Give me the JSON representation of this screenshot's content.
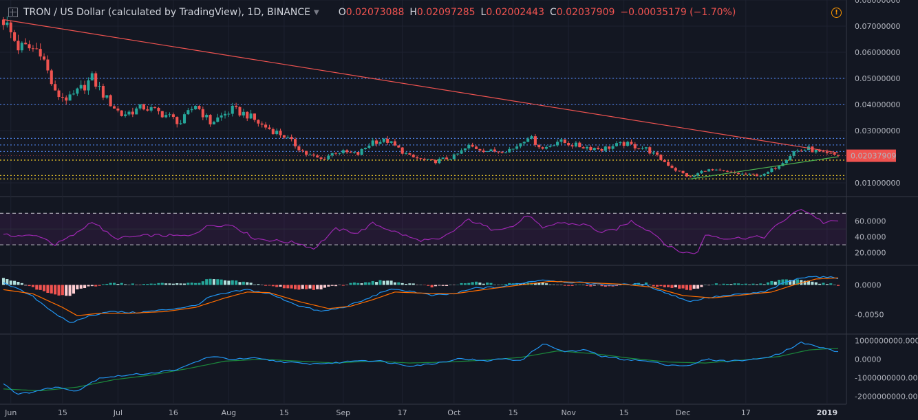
{
  "header": {
    "symbol": "TRON / US Dollar (calculated by TradingView), 1D, BINANCE",
    "open_label": "O",
    "open": "0.02073088",
    "high_label": "H",
    "high": "0.02097285",
    "low_label": "L",
    "low": "0.02002443",
    "close_label": "C",
    "close": "0.02037909",
    "change": "−0.00035179 (−1.70%)"
  },
  "colors": {
    "up": "#26a69a",
    "down": "#ef5350",
    "background": "#131722",
    "rsi": "#9c27b0",
    "macd": "#2196f3",
    "signal": "#ff6d00",
    "obv": "#2196f3",
    "obv_ma": "#1b8a3c"
  },
  "chart_data": [
    {
      "type": "candlestick",
      "pane": "price",
      "ylim": [
        0.005,
        0.08
      ],
      "yticks": [
        "0.08000000",
        "0.07000000",
        "0.06000000",
        "0.05000000",
        "0.04000000",
        "0.03000000",
        "0.01000000"
      ],
      "last_price": "0.02037909",
      "xticks": [
        "Jun",
        "15",
        "Jul",
        "16",
        "Aug",
        "15",
        "Sep",
        "17",
        "Oct",
        "15",
        "Nov",
        "15",
        "Dec",
        "17",
        "2019"
      ],
      "close_anchors": [
        {
          "day": 0,
          "v": 0.0725
        },
        {
          "day": 4,
          "v": 0.062
        },
        {
          "day": 10,
          "v": 0.061
        },
        {
          "day": 14,
          "v": 0.044
        },
        {
          "day": 18,
          "v": 0.042
        },
        {
          "day": 24,
          "v": 0.05
        },
        {
          "day": 28,
          "v": 0.042
        },
        {
          "day": 32,
          "v": 0.036
        },
        {
          "day": 38,
          "v": 0.039
        },
        {
          "day": 44,
          "v": 0.036
        },
        {
          "day": 48,
          "v": 0.033
        },
        {
          "day": 52,
          "v": 0.04
        },
        {
          "day": 56,
          "v": 0.033
        },
        {
          "day": 62,
          "v": 0.038
        },
        {
          "day": 66,
          "v": 0.036
        },
        {
          "day": 70,
          "v": 0.032
        },
        {
          "day": 76,
          "v": 0.028
        },
        {
          "day": 82,
          "v": 0.021
        },
        {
          "day": 86,
          "v": 0.019
        },
        {
          "day": 90,
          "v": 0.022
        },
        {
          "day": 96,
          "v": 0.021
        },
        {
          "day": 100,
          "v": 0.026
        },
        {
          "day": 104,
          "v": 0.026
        },
        {
          "day": 110,
          "v": 0.02
        },
        {
          "day": 116,
          "v": 0.018
        },
        {
          "day": 122,
          "v": 0.02
        },
        {
          "day": 126,
          "v": 0.024
        },
        {
          "day": 132,
          "v": 0.022
        },
        {
          "day": 138,
          "v": 0.023
        },
        {
          "day": 142,
          "v": 0.028
        },
        {
          "day": 146,
          "v": 0.023
        },
        {
          "day": 150,
          "v": 0.026
        },
        {
          "day": 156,
          "v": 0.024
        },
        {
          "day": 162,
          "v": 0.023
        },
        {
          "day": 168,
          "v": 0.025
        },
        {
          "day": 174,
          "v": 0.023
        },
        {
          "day": 178,
          "v": 0.019
        },
        {
          "day": 182,
          "v": 0.015
        },
        {
          "day": 186,
          "v": 0.012
        },
        {
          "day": 190,
          "v": 0.015
        },
        {
          "day": 196,
          "v": 0.014
        },
        {
          "day": 202,
          "v": 0.013
        },
        {
          "day": 206,
          "v": 0.013
        },
        {
          "day": 210,
          "v": 0.017
        },
        {
          "day": 214,
          "v": 0.022
        },
        {
          "day": 218,
          "v": 0.023
        },
        {
          "day": 222,
          "v": 0.021
        },
        {
          "day": 226,
          "v": 0.0205
        }
      ],
      "horizontal_levels": [
        {
          "v": 0.05,
          "color": "#4a7ad8"
        },
        {
          "v": 0.04,
          "color": "#4a7ad8"
        },
        {
          "v": 0.027,
          "color": "#4a7ad8"
        },
        {
          "v": 0.0245,
          "color": "#4a7ad8"
        },
        {
          "v": 0.022,
          "color": "#4a7ad8"
        },
        {
          "v": 0.0187,
          "color": "#e6c229"
        },
        {
          "v": 0.0128,
          "color": "#e6c229"
        },
        {
          "v": 0.0115,
          "color": "#e6c229"
        }
      ],
      "trendlines": [
        {
          "from": {
            "day": 0,
            "v": 0.0725
          },
          "to": {
            "day": 226,
            "v": 0.0215
          },
          "color": "#ef5350"
        },
        {
          "from": {
            "day": 186,
            "v": 0.0115
          },
          "to": {
            "day": 226,
            "v": 0.02
          },
          "color": "#4caf50"
        }
      ]
    },
    {
      "type": "line",
      "pane": "rsi",
      "ylim": [
        10,
        85
      ],
      "yticks": [
        "60.0000",
        "40.0000",
        "20.0000"
      ],
      "bands": [
        70,
        30
      ],
      "anchors": [
        {
          "day": 0,
          "v": 42
        },
        {
          "day": 10,
          "v": 41
        },
        {
          "day": 14,
          "v": 30
        },
        {
          "day": 20,
          "v": 45
        },
        {
          "day": 24,
          "v": 60
        },
        {
          "day": 30,
          "v": 38
        },
        {
          "day": 40,
          "v": 42
        },
        {
          "day": 50,
          "v": 41
        },
        {
          "day": 56,
          "v": 55
        },
        {
          "day": 62,
          "v": 55
        },
        {
          "day": 68,
          "v": 38
        },
        {
          "day": 80,
          "v": 32
        },
        {
          "day": 84,
          "v": 25
        },
        {
          "day": 90,
          "v": 50
        },
        {
          "day": 96,
          "v": 45
        },
        {
          "day": 100,
          "v": 57
        },
        {
          "day": 104,
          "v": 50
        },
        {
          "day": 112,
          "v": 36
        },
        {
          "day": 118,
          "v": 36
        },
        {
          "day": 122,
          "v": 48
        },
        {
          "day": 126,
          "v": 62
        },
        {
          "day": 132,
          "v": 50
        },
        {
          "day": 138,
          "v": 53
        },
        {
          "day": 142,
          "v": 68
        },
        {
          "day": 146,
          "v": 50
        },
        {
          "day": 150,
          "v": 58
        },
        {
          "day": 158,
          "v": 55
        },
        {
          "day": 162,
          "v": 45
        },
        {
          "day": 166,
          "v": 50
        },
        {
          "day": 170,
          "v": 60
        },
        {
          "day": 176,
          "v": 45
        },
        {
          "day": 180,
          "v": 28
        },
        {
          "day": 184,
          "v": 20
        },
        {
          "day": 188,
          "v": 20
        },
        {
          "day": 190,
          "v": 43
        },
        {
          "day": 196,
          "v": 38
        },
        {
          "day": 206,
          "v": 40
        },
        {
          "day": 210,
          "v": 57
        },
        {
          "day": 216,
          "v": 76
        },
        {
          "day": 220,
          "v": 65
        },
        {
          "day": 222,
          "v": 58
        },
        {
          "day": 226,
          "v": 60
        }
      ]
    },
    {
      "type": "macd",
      "pane": "macd",
      "ylim": [
        -0.0075,
        0.0025
      ],
      "yticks": [
        "0.0000",
        "-0.0050"
      ],
      "macd_anchors": [
        {
          "day": 0,
          "v": 0.0005
        },
        {
          "day": 8,
          "v": -0.002
        },
        {
          "day": 14,
          "v": -0.0048
        },
        {
          "day": 18,
          "v": -0.0065
        },
        {
          "day": 22,
          "v": -0.0055
        },
        {
          "day": 28,
          "v": -0.0045
        },
        {
          "day": 36,
          "v": -0.0047
        },
        {
          "day": 44,
          "v": -0.0042
        },
        {
          "day": 52,
          "v": -0.0035
        },
        {
          "day": 56,
          "v": -0.002
        },
        {
          "day": 62,
          "v": -0.0012
        },
        {
          "day": 66,
          "v": -0.0008
        },
        {
          "day": 72,
          "v": -0.0015
        },
        {
          "day": 80,
          "v": -0.0035
        },
        {
          "day": 86,
          "v": -0.0045
        },
        {
          "day": 92,
          "v": -0.0038
        },
        {
          "day": 98,
          "v": -0.0025
        },
        {
          "day": 104,
          "v": -0.0008
        },
        {
          "day": 110,
          "v": -0.001
        },
        {
          "day": 116,
          "v": -0.0018
        },
        {
          "day": 122,
          "v": -0.0015
        },
        {
          "day": 128,
          "v": -0.0005
        },
        {
          "day": 134,
          "v": -0.0004
        },
        {
          "day": 140,
          "v": 0.0003
        },
        {
          "day": 146,
          "v": 0.0009
        },
        {
          "day": 152,
          "v": 0.0005
        },
        {
          "day": 158,
          "v": 0.0003
        },
        {
          "day": 164,
          "v": 0
        },
        {
          "day": 170,
          "v": 0.0001
        },
        {
          "day": 174,
          "v": 0
        },
        {
          "day": 180,
          "v": -0.0015
        },
        {
          "day": 186,
          "v": -0.0028
        },
        {
          "day": 190,
          "v": -0.0022
        },
        {
          "day": 196,
          "v": -0.0018
        },
        {
          "day": 206,
          "v": -0.0012
        },
        {
          "day": 212,
          "v": 0.0005
        },
        {
          "day": 218,
          "v": 0.0015
        },
        {
          "day": 222,
          "v": 0.0013
        },
        {
          "day": 226,
          "v": 0.0012
        }
      ],
      "signal_anchors": [
        {
          "day": 0,
          "v": -0.0008
        },
        {
          "day": 8,
          "v": -0.0015
        },
        {
          "day": 16,
          "v": -0.0038
        },
        {
          "day": 20,
          "v": -0.0052
        },
        {
          "day": 26,
          "v": -0.0048
        },
        {
          "day": 34,
          "v": -0.0048
        },
        {
          "day": 44,
          "v": -0.0045
        },
        {
          "day": 52,
          "v": -0.0038
        },
        {
          "day": 60,
          "v": -0.0022
        },
        {
          "day": 66,
          "v": -0.0012
        },
        {
          "day": 72,
          "v": -0.0013
        },
        {
          "day": 80,
          "v": -0.0028
        },
        {
          "day": 88,
          "v": -0.004
        },
        {
          "day": 94,
          "v": -0.0036
        },
        {
          "day": 100,
          "v": -0.0025
        },
        {
          "day": 106,
          "v": -0.0012
        },
        {
          "day": 114,
          "v": -0.0014
        },
        {
          "day": 122,
          "v": -0.0015
        },
        {
          "day": 130,
          "v": -0.0008
        },
        {
          "day": 140,
          "v": 0
        },
        {
          "day": 148,
          "v": 0.0006
        },
        {
          "day": 158,
          "v": 0.0004
        },
        {
          "day": 168,
          "v": 0.0001
        },
        {
          "day": 176,
          "v": -0.0004
        },
        {
          "day": 184,
          "v": -0.0018
        },
        {
          "day": 192,
          "v": -0.0022
        },
        {
          "day": 200,
          "v": -0.0017
        },
        {
          "day": 208,
          "v": -0.0012
        },
        {
          "day": 214,
          "v": 0
        },
        {
          "day": 220,
          "v": 0.001
        },
        {
          "day": 226,
          "v": 0.0012
        }
      ]
    },
    {
      "type": "line",
      "pane": "obv",
      "ylim": [
        -2200000000,
        1100000000
      ],
      "yticks": [
        "1000000000.0000",
        "0.0000",
        "-1000000000.0000",
        "-2000000000.0000"
      ],
      "obv_anchors": [
        {
          "day": 0,
          "v": -1300000000
        },
        {
          "day": 4,
          "v": -1900000000
        },
        {
          "day": 8,
          "v": -1750000000
        },
        {
          "day": 14,
          "v": -1500000000
        },
        {
          "day": 20,
          "v": -1700000000
        },
        {
          "day": 26,
          "v": -1000000000
        },
        {
          "day": 34,
          "v": -850000000
        },
        {
          "day": 42,
          "v": -700000000
        },
        {
          "day": 48,
          "v": -500000000
        },
        {
          "day": 52,
          "v": -150000000
        },
        {
          "day": 56,
          "v": 150000000
        },
        {
          "day": 62,
          "v": 0
        },
        {
          "day": 68,
          "v": 50000000
        },
        {
          "day": 74,
          "v": -100000000
        },
        {
          "day": 82,
          "v": -250000000
        },
        {
          "day": 90,
          "v": -200000000
        },
        {
          "day": 96,
          "v": -50000000
        },
        {
          "day": 102,
          "v": -100000000
        },
        {
          "day": 110,
          "v": -350000000
        },
        {
          "day": 116,
          "v": -250000000
        },
        {
          "day": 124,
          "v": 50000000
        },
        {
          "day": 130,
          "v": -100000000
        },
        {
          "day": 136,
          "v": 50000000
        },
        {
          "day": 140,
          "v": -100000000
        },
        {
          "day": 146,
          "v": 850000000
        },
        {
          "day": 152,
          "v": 400000000
        },
        {
          "day": 158,
          "v": 500000000
        },
        {
          "day": 162,
          "v": 150000000
        },
        {
          "day": 168,
          "v": 0
        },
        {
          "day": 174,
          "v": -100000000
        },
        {
          "day": 180,
          "v": -300000000
        },
        {
          "day": 186,
          "v": -350000000
        },
        {
          "day": 190,
          "v": 0
        },
        {
          "day": 196,
          "v": -100000000
        },
        {
          "day": 204,
          "v": 0
        },
        {
          "day": 210,
          "v": 300000000
        },
        {
          "day": 216,
          "v": 900000000
        },
        {
          "day": 222,
          "v": 600000000
        },
        {
          "day": 226,
          "v": 400000000
        }
      ],
      "obv_ma_anchors": [
        {
          "day": 0,
          "v": -1600000000
        },
        {
          "day": 10,
          "v": -1700000000
        },
        {
          "day": 20,
          "v": -1500000000
        },
        {
          "day": 30,
          "v": -1100000000
        },
        {
          "day": 40,
          "v": -850000000
        },
        {
          "day": 50,
          "v": -500000000
        },
        {
          "day": 60,
          "v": -100000000
        },
        {
          "day": 70,
          "v": 0
        },
        {
          "day": 80,
          "v": -100000000
        },
        {
          "day": 90,
          "v": -200000000
        },
        {
          "day": 100,
          "v": -100000000
        },
        {
          "day": 110,
          "v": -200000000
        },
        {
          "day": 120,
          "v": -150000000
        },
        {
          "day": 130,
          "v": -50000000
        },
        {
          "day": 140,
          "v": 100000000
        },
        {
          "day": 150,
          "v": 450000000
        },
        {
          "day": 160,
          "v": 300000000
        },
        {
          "day": 170,
          "v": 50000000
        },
        {
          "day": 180,
          "v": -150000000
        },
        {
          "day": 190,
          "v": -200000000
        },
        {
          "day": 200,
          "v": -50000000
        },
        {
          "day": 210,
          "v": 150000000
        },
        {
          "day": 218,
          "v": 500000000
        },
        {
          "day": 226,
          "v": 600000000
        }
      ]
    }
  ]
}
